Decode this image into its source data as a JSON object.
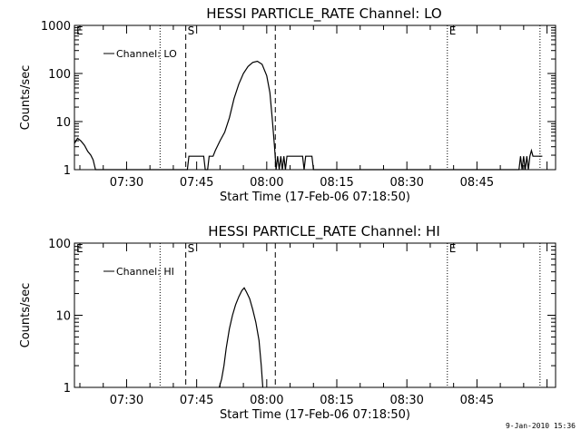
{
  "footer": {
    "timestamp": "9-Jan-2010 15:36"
  },
  "chart_data": [
    {
      "type": "line",
      "title": "HESSI PARTICLE_RATE Channel: LO",
      "xlabel": "Start Time (17-Feb-06 07:18:50)",
      "ylabel": "Counts/sec",
      "y_scale": "log",
      "ylim": [
        1,
        1000
      ],
      "yticks": [
        "1",
        "10",
        "100",
        "1000"
      ],
      "xlim": [
        "07:18:50",
        "09:01:50"
      ],
      "xticks": [
        "07:30",
        "07:45",
        "08:00",
        "08:15",
        "08:30",
        "08:45"
      ],
      "legend": {
        "position": "top-left",
        "entry": "Channel: LO"
      },
      "series": [
        {
          "name": "Channel: LO",
          "points": [
            [
              "07:18:50",
              3.5
            ],
            [
              "07:19:30",
              4.5
            ],
            [
              "07:20:10",
              4.0
            ],
            [
              "07:21:00",
              3.2
            ],
            [
              "07:21:40",
              2.4
            ],
            [
              "07:22:20",
              2.0
            ],
            [
              "07:22:50",
              1.6
            ],
            [
              "07:23:20",
              1.0
            ],
            [
              "07:43:00",
              1.0
            ],
            [
              "07:43:20",
              1.9
            ],
            [
              "07:46:30",
              1.9
            ],
            [
              "07:46:50",
              1.0
            ],
            [
              "07:47:20",
              1.0
            ],
            [
              "07:47:40",
              1.9
            ],
            [
              "07:48:30",
              1.9
            ],
            [
              "07:49:00",
              2.5
            ],
            [
              "07:50:00",
              4.0
            ],
            [
              "07:51:00",
              6.0
            ],
            [
              "07:52:00",
              12.0
            ],
            [
              "07:53:00",
              30.0
            ],
            [
              "07:54:00",
              60.0
            ],
            [
              "07:55:00",
              100.0
            ],
            [
              "07:56:00",
              140.0
            ],
            [
              "07:57:00",
              170.0
            ],
            [
              "07:58:00",
              180.0
            ],
            [
              "07:59:00",
              155.0
            ],
            [
              "08:00:00",
              90.0
            ],
            [
              "08:00:40",
              40.0
            ],
            [
              "08:01:10",
              12.0
            ],
            [
              "08:01:40",
              3.0
            ],
            [
              "08:02:00",
              1.0
            ],
            [
              "08:02:20",
              1.9
            ],
            [
              "08:02:40",
              1.0
            ],
            [
              "08:03:00",
              1.9
            ],
            [
              "08:03:20",
              1.0
            ],
            [
              "08:03:40",
              1.9
            ],
            [
              "08:04:00",
              1.0
            ],
            [
              "08:04:20",
              1.9
            ],
            [
              "08:07:40",
              1.9
            ],
            [
              "08:08:00",
              1.0
            ],
            [
              "08:08:20",
              1.9
            ],
            [
              "08:09:40",
              1.9
            ],
            [
              "08:10:00",
              1.0
            ],
            [
              "08:54:00",
              1.0
            ],
            [
              "08:54:20",
              1.9
            ],
            [
              "08:54:40",
              1.0
            ],
            [
              "08:55:00",
              1.9
            ],
            [
              "08:55:20",
              1.0
            ],
            [
              "08:55:40",
              1.9
            ],
            [
              "08:56:00",
              1.0
            ],
            [
              "08:56:20",
              1.9
            ],
            [
              "08:56:40",
              2.5
            ],
            [
              "08:57:00",
              1.9
            ],
            [
              "08:59:00",
              1.9
            ]
          ]
        }
      ],
      "annotations": [
        {
          "label": "E",
          "time": "07:18:50",
          "style": "none"
        },
        {
          "label": "S",
          "time": "07:42:40",
          "style": "dashed"
        },
        {
          "label": "",
          "time": "08:01:50",
          "style": "dashed"
        },
        {
          "label": "E",
          "time": "08:38:40",
          "style": "dotted"
        },
        {
          "label": "",
          "time": "07:37:10",
          "style": "dotted"
        },
        {
          "label": "",
          "time": "08:58:30",
          "style": "dotted"
        }
      ]
    },
    {
      "type": "line",
      "title": "HESSI PARTICLE_RATE Channel: HI",
      "xlabel": "Start Time (17-Feb-06 07:18:50)",
      "ylabel": "Counts/sec",
      "y_scale": "log",
      "ylim": [
        1,
        100
      ],
      "yticks": [
        "1",
        "10",
        "100"
      ],
      "xlim": [
        "07:18:50",
        "09:01:50"
      ],
      "xticks": [
        "07:30",
        "07:45",
        "08:00",
        "08:15",
        "08:30",
        "08:45"
      ],
      "legend": {
        "position": "top-left",
        "entry": "Channel: HI"
      },
      "series": [
        {
          "name": "Channel: HI",
          "points": [
            [
              "07:49:50",
              1.0
            ],
            [
              "07:50:20",
              1.3
            ],
            [
              "07:50:50",
              2.0
            ],
            [
              "07:51:20",
              3.5
            ],
            [
              "07:52:00",
              6.5
            ],
            [
              "07:52:40",
              10.0
            ],
            [
              "07:53:20",
              14.0
            ],
            [
              "07:54:00",
              18.0
            ],
            [
              "07:54:40",
              22.0
            ],
            [
              "07:55:10",
              24.0
            ],
            [
              "07:55:40",
              21.0
            ],
            [
              "07:56:20",
              17.0
            ],
            [
              "07:57:00",
              12.0
            ],
            [
              "07:57:40",
              8.0
            ],
            [
              "07:58:20",
              4.5
            ],
            [
              "07:58:50",
              2.0
            ],
            [
              "07:59:10",
              1.0
            ]
          ]
        }
      ],
      "annotations": [
        {
          "label": "E",
          "time": "07:18:50",
          "style": "none"
        },
        {
          "label": "S",
          "time": "07:42:40",
          "style": "dashed"
        },
        {
          "label": "",
          "time": "08:01:50",
          "style": "dashed"
        },
        {
          "label": "E",
          "time": "08:38:40",
          "style": "dotted"
        },
        {
          "label": "",
          "time": "07:37:10",
          "style": "dotted"
        },
        {
          "label": "",
          "time": "08:58:30",
          "style": "dotted"
        }
      ]
    }
  ]
}
